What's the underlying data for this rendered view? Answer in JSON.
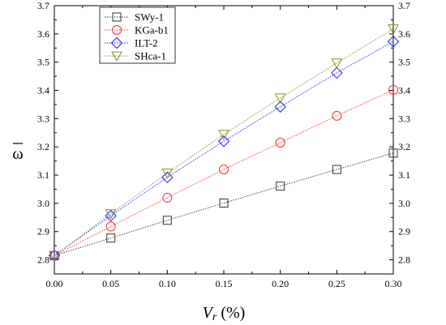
{
  "chart_data": {
    "type": "line",
    "xlabel_var": "V",
    "xlabel_sub": "r",
    "xlabel_unit": " (%)",
    "ylabel": "ω",
    "xlim": [
      0,
      0.3
    ],
    "ylim": [
      2.75,
      3.7
    ],
    "x_ticks": [
      "0.00",
      "0.05",
      "0.10",
      "0.15",
      "0.20",
      "0.25",
      "0.30"
    ],
    "y_ticks": [
      "2.8",
      "2.9",
      "3.0",
      "3.1",
      "3.2",
      "3.3",
      "3.4",
      "3.5",
      "3.6",
      "3.7"
    ],
    "x": [
      0,
      0.05,
      0.1,
      0.15,
      0.2,
      0.25,
      0.3
    ],
    "legend_position": "top-left",
    "series": [
      {
        "name": "SWy-1",
        "marker": "square",
        "color": "#333333",
        "values": [
          2.815,
          2.877,
          2.94,
          3.001,
          3.061,
          3.12,
          3.178
        ]
      },
      {
        "name": "KGa-b1",
        "marker": "circle",
        "color": "#ff2a2a",
        "values": [
          2.815,
          2.918,
          3.02,
          3.12,
          3.215,
          3.31,
          3.402
        ]
      },
      {
        "name": "ILT-2",
        "marker": "diamond",
        "color": "#2020ff",
        "values": [
          2.815,
          2.956,
          3.092,
          3.22,
          3.342,
          3.462,
          3.573
        ]
      },
      {
        "name": "SHca-1",
        "marker": "triangle",
        "color": "#8c8c1a",
        "values": [
          2.815,
          2.963,
          3.107,
          3.244,
          3.373,
          3.497,
          3.618
        ]
      }
    ]
  }
}
